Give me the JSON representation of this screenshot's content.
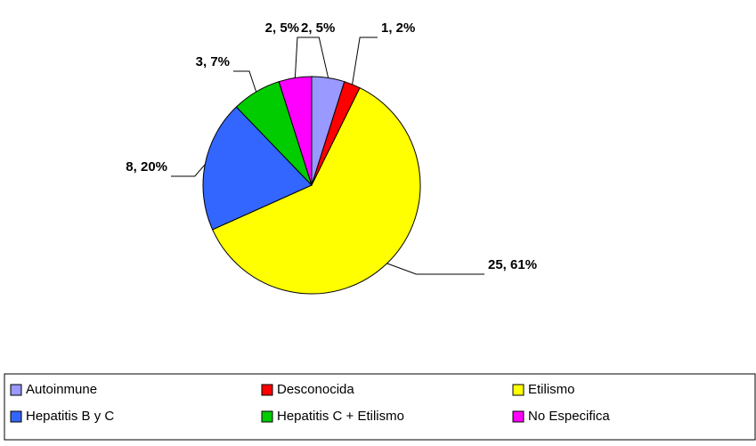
{
  "chart_data": {
    "type": "pie",
    "categories": [
      "Autoinmune",
      "Desconocida",
      "Etilismo",
      "Hepatitis B y C",
      "Hepatitis C + Etilismo",
      "No Especifica"
    ],
    "values": [
      2,
      1,
      25,
      8,
      3,
      2
    ],
    "value_labels": [
      "2, 5%",
      "1, 2%",
      "25, 61%",
      "8, 20%",
      "3, 7%",
      "2, 5%"
    ],
    "colors": [
      "#9999ff",
      "#ff0000",
      "#ffff00",
      "#3366ff",
      "#00cc00",
      "#ff00ff"
    ],
    "legend": "bottom"
  }
}
